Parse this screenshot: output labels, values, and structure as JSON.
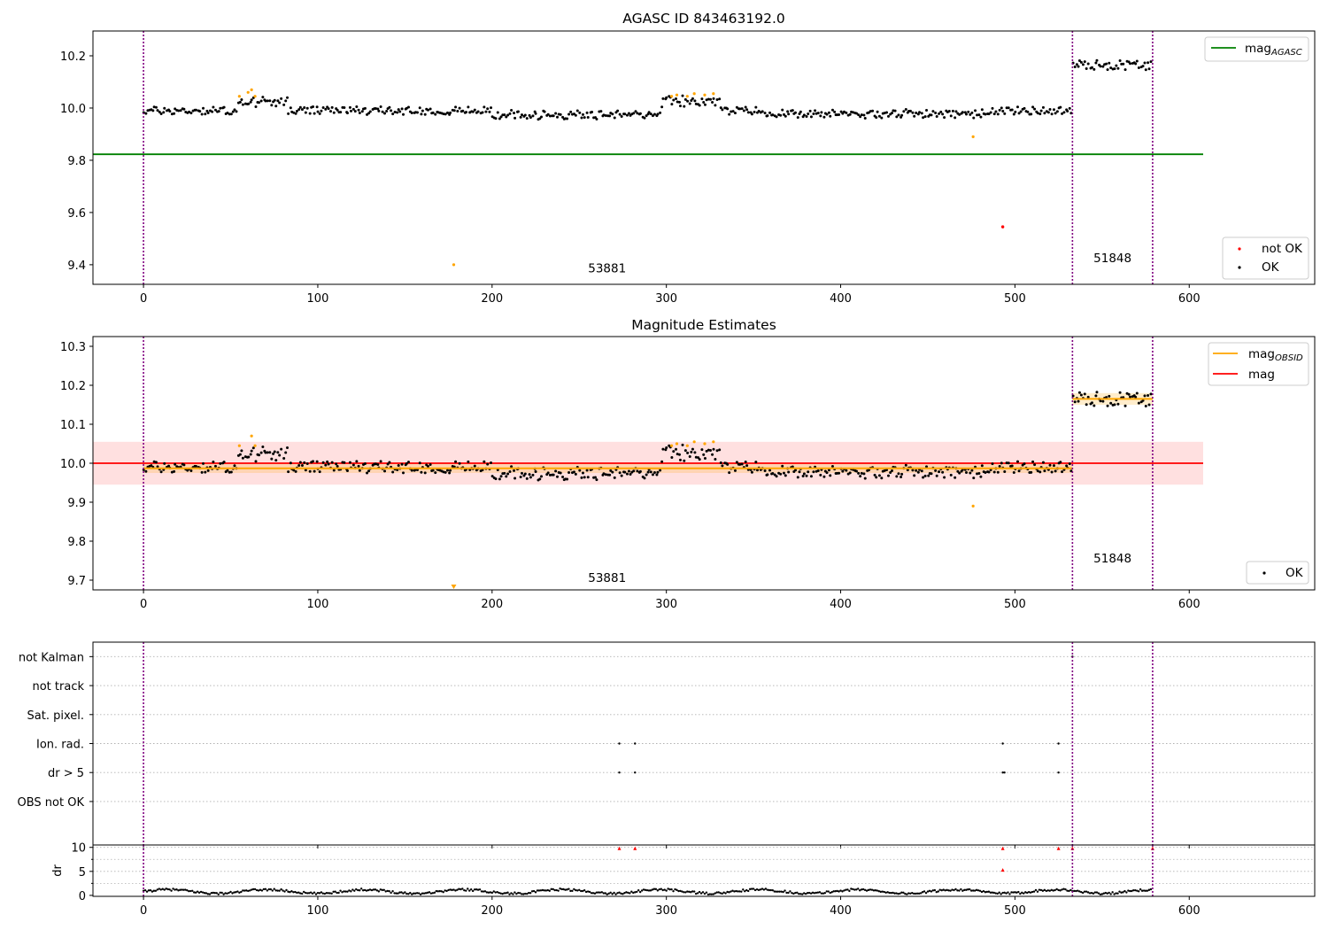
{
  "figure": {
    "title_top": "AGASC ID 843463192.0",
    "title_middle": "Magnitude Estimates"
  },
  "colors": {
    "ok": "#000000",
    "not_ok": "#ff0000",
    "flagged": "#ffa500",
    "mag_agasc": "#008000",
    "mag_obsid": "#ffa500",
    "mag": "#ff0000",
    "obs_boundary": "#800080",
    "grid": "#b0b0b0"
  },
  "legend": {
    "top_right": [
      "mag_AGASC"
    ],
    "top_bottom_right": [
      "not OK",
      "OK"
    ],
    "middle_right": [
      "mag_OBSID",
      "mag"
    ],
    "middle_bottom_right": [
      "OK"
    ]
  },
  "chart_data": [
    {
      "id": "top",
      "type": "scatter",
      "title": "AGASC ID 843463192.0",
      "xlim": [
        -29,
        672
      ],
      "ylim": [
        9.325,
        10.295
      ],
      "xticks": [
        0,
        100,
        200,
        300,
        400,
        500,
        600
      ],
      "yticks": [
        9.4,
        9.6,
        9.8,
        10.0,
        10.2
      ],
      "ytick_labels": [
        "9.4",
        "9.6",
        "9.8",
        "10.0",
        "10.2"
      ],
      "mag_agasc": 9.823,
      "mag_agasc_xrange": [
        -29,
        608
      ],
      "obs_boundaries": [
        0,
        533,
        579
      ],
      "obs_labels": [
        {
          "text": "53881",
          "x": 266,
          "y": 9.37
        },
        {
          "text": "51848",
          "x": 556,
          "y": 9.41
        }
      ],
      "series": [
        {
          "name": "OK",
          "segments": [
            {
              "x0": 0,
              "x1": 532,
              "base": 9.99,
              "amp": 0.02,
              "bumps": [
                {
                  "x0": 54,
                  "x1": 82,
                  "d": 0.04
                },
                {
                  "x0": 298,
                  "x1": 330,
                  "d": 0.045
                },
                {
                  "x0": 200,
                  "x1": 295,
                  "d": -0.02
                },
                {
                  "x0": 355,
                  "x1": 480,
                  "d": -0.015
                }
              ]
            },
            {
              "x0": 533,
              "x1": 578,
              "base": 10.165,
              "amp": 0.025,
              "bumps": []
            }
          ]
        },
        {
          "name": "not OK",
          "points": [
            [
              493,
              9.545
            ]
          ]
        },
        {
          "name": "flagged",
          "points": [
            [
              55,
              10.045
            ],
            [
              60,
              10.06
            ],
            [
              62,
              10.07
            ],
            [
              64,
              10.045
            ],
            [
              178,
              9.4
            ],
            [
              303,
              10.045
            ],
            [
              306,
              10.05
            ],
            [
              312,
              10.045
            ],
            [
              316,
              10.055
            ],
            [
              322,
              10.05
            ],
            [
              327,
              10.055
            ],
            [
              476,
              9.89
            ]
          ]
        }
      ]
    },
    {
      "id": "middle",
      "type": "scatter",
      "title": "Magnitude Estimates",
      "xlim": [
        -29,
        672
      ],
      "ylim": [
        9.675,
        10.325
      ],
      "xticks": [
        0,
        100,
        200,
        300,
        400,
        500,
        600
      ],
      "yticks": [
        9.7,
        9.8,
        9.9,
        10.0,
        10.1,
        10.2,
        10.3
      ],
      "ytick_labels": [
        "9.7",
        "9.8",
        "9.9",
        "10.0",
        "10.1",
        "10.2",
        "10.3"
      ],
      "mag": 10.0,
      "mag_band": [
        9.945,
        10.055
      ],
      "mag_xrange": [
        -29,
        608
      ],
      "mag_obsid": [
        {
          "x0": 0,
          "x1": 533,
          "y": 9.987,
          "band": [
            9.975,
            10.0
          ]
        },
        {
          "x0": 533,
          "x1": 579,
          "y": 10.165,
          "band": [
            10.15,
            10.18
          ]
        }
      ],
      "obs_boundaries": [
        0,
        533,
        579
      ],
      "obs_labels": [
        {
          "text": "53881",
          "x": 266,
          "y": 9.695
        },
        {
          "text": "51848",
          "x": 556,
          "y": 9.745
        }
      ],
      "series": [
        {
          "name": "OK",
          "segments": [
            {
              "x0": 0,
              "x1": 532,
              "base": 9.99,
              "amp": 0.02,
              "bumps": [
                {
                  "x0": 54,
                  "x1": 82,
                  "d": 0.04
                },
                {
                  "x0": 298,
                  "x1": 330,
                  "d": 0.045
                },
                {
                  "x0": 200,
                  "x1": 295,
                  "d": -0.02
                },
                {
                  "x0": 355,
                  "x1": 480,
                  "d": -0.015
                }
              ]
            },
            {
              "x0": 533,
              "x1": 578,
              "base": 10.165,
              "amp": 0.025,
              "bumps": []
            }
          ]
        },
        {
          "name": "flagged",
          "points": [
            [
              55,
              10.045
            ],
            [
              62,
              10.07
            ],
            [
              64,
              10.045
            ],
            [
              178,
              9.68
            ],
            [
              303,
              10.045
            ],
            [
              306,
              10.05
            ],
            [
              312,
              10.045
            ],
            [
              316,
              10.055
            ],
            [
              322,
              10.05
            ],
            [
              327,
              10.055
            ],
            [
              476,
              9.89
            ]
          ]
        }
      ]
    },
    {
      "id": "flags",
      "type": "scatter",
      "xlim": [
        -29,
        672
      ],
      "ylim": [
        -0.5,
        6.5
      ],
      "xticks": [
        0,
        100,
        200,
        300,
        400,
        500,
        600
      ],
      "categories": [
        "not Kalman",
        "not track",
        "Sat. pixel.",
        "Ion. rad.",
        "dr > 5",
        "OBS not OK"
      ],
      "category_y": [
        6,
        5,
        4,
        3,
        2,
        1
      ],
      "obs_boundaries": [
        0,
        533,
        579
      ],
      "series": [
        {
          "name": "not Kalman",
          "points": [
            [
              533,
              6
            ]
          ]
        },
        {
          "name": "Ion. rad.",
          "points": [
            [
              273,
              3
            ],
            [
              282,
              3
            ],
            [
              493,
              3
            ],
            [
              525,
              3
            ]
          ]
        },
        {
          "name": "dr > 5",
          "points": [
            [
              273,
              2
            ],
            [
              282,
              2
            ],
            [
              493,
              2
            ],
            [
              494,
              2
            ],
            [
              525,
              2
            ]
          ]
        }
      ]
    },
    {
      "id": "dr",
      "type": "scatter",
      "ylabel": "dr",
      "xlim": [
        -29,
        672
      ],
      "ylim": [
        -0.2,
        10.5
      ],
      "xticks": [
        0,
        100,
        200,
        300,
        400,
        500,
        600
      ],
      "yticks": [
        0,
        5,
        10
      ],
      "ytick_labels": [
        "0",
        "5",
        "10"
      ],
      "obs_boundaries": [
        0,
        533,
        579
      ],
      "series": [
        {
          "name": "dr",
          "range": [
            0,
            578
          ],
          "base": 0.8,
          "amp": 0.45
        },
        {
          "name": "dr > 5",
          "points": [
            [
              273,
              9.8
            ],
            [
              282,
              9.8
            ],
            [
              493,
              9.8
            ],
            [
              493,
              5.3
            ],
            [
              525,
              9.8
            ],
            [
              533,
              9.8
            ],
            [
              579,
              9.8
            ]
          ]
        }
      ]
    }
  ]
}
